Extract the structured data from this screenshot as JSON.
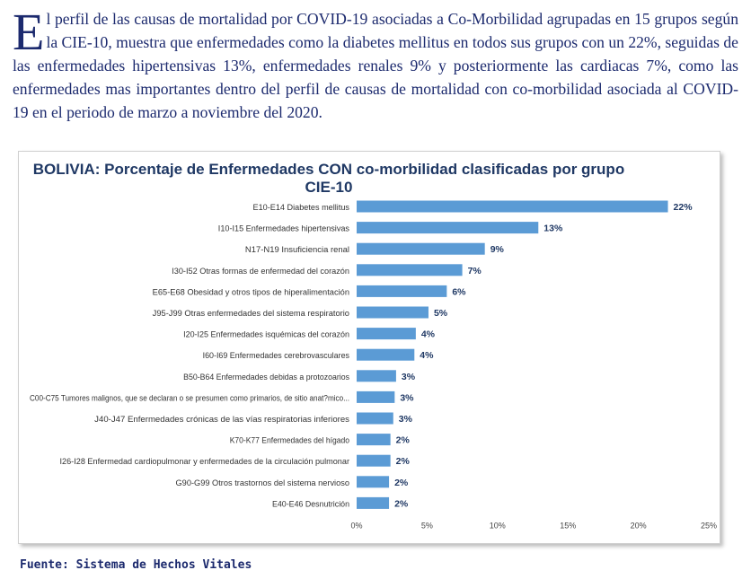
{
  "intro": {
    "dropcap": "E",
    "text": "l perfil de las causas de mortalidad por COVID-19 asociadas a Co-Morbilidad agrupadas en 15 grupos según la CIE-10, muestra que enfermedades como la diabetes mellitus en todos sus grupos con un 22%, seguidas de las enfermedades hipertensivas 13%, enfermedades renales 9% y posteriormente las cardiacas 7%, como las enfermedades mas importantes  dentro del perfil de causas de mortalidad con co-morbilidad asociada al COVID-19 en el periodo de marzo a noviembre del 2020."
  },
  "source": "Fuente: Sistema de Hechos Vitales",
  "colors": {
    "bar": "#5b9bd5",
    "text": "#1c2a6e",
    "title": "#1f3864"
  },
  "chart_data": {
    "type": "bar",
    "orientation": "horizontal",
    "title": "BOLIVIA: Porcentaje de Enfermedades CON co-morbilidad clasificadas por grupo CIE-10",
    "categories": [
      "E10-E14 Diabetes mellitus",
      "I10-I15 Enfermedades hipertensivas",
      "N17-N19 Insuficiencia renal",
      "I30-I52 Otras formas de enfermedad del corazón",
      "E65-E68 Obesidad y otros tipos de hiperalimentación",
      "J95-J99 Otras enfermedades del sistema respiratorio",
      "I20-I25 Enfermedades isquémicas del corazón",
      "I60-I69 Enfermedades cerebrovasculares",
      "B50-B64 Enfermedades debidas a protozoarios",
      "C00-C75 Tumores malignos, que se declaran o se presumen como primarios, de sitio anat?mico...",
      "J40-J47 Enfermedades crónicas de las vías respiratorias inferiores",
      "K70-K77 Enfermedades del hígado",
      "I26-I28 Enfermedad cardiopulmonar y enfermedades de la circulación pulmonar",
      "G90-G99 Otros trastornos del sistema nervioso",
      "E40-E46 Desnutrición"
    ],
    "values": [
      22.1,
      12.9,
      9.1,
      7.5,
      6.4,
      5.1,
      4.2,
      4.1,
      2.8,
      2.7,
      2.6,
      2.4,
      2.4,
      2.3,
      2.3
    ],
    "data_labels": [
      "22%",
      "13%",
      "9%",
      "7%",
      "6%",
      "5%",
      "4%",
      "4%",
      "3%",
      "3%",
      "3%",
      "2%",
      "2%",
      "2%",
      "2%"
    ],
    "xlim": [
      0,
      25
    ],
    "xticks": [
      0,
      5,
      10,
      15,
      20,
      25
    ],
    "xtick_labels": [
      "0%",
      "5%",
      "10%",
      "15%",
      "20%",
      "25%"
    ],
    "grid": false,
    "legend": "none"
  }
}
